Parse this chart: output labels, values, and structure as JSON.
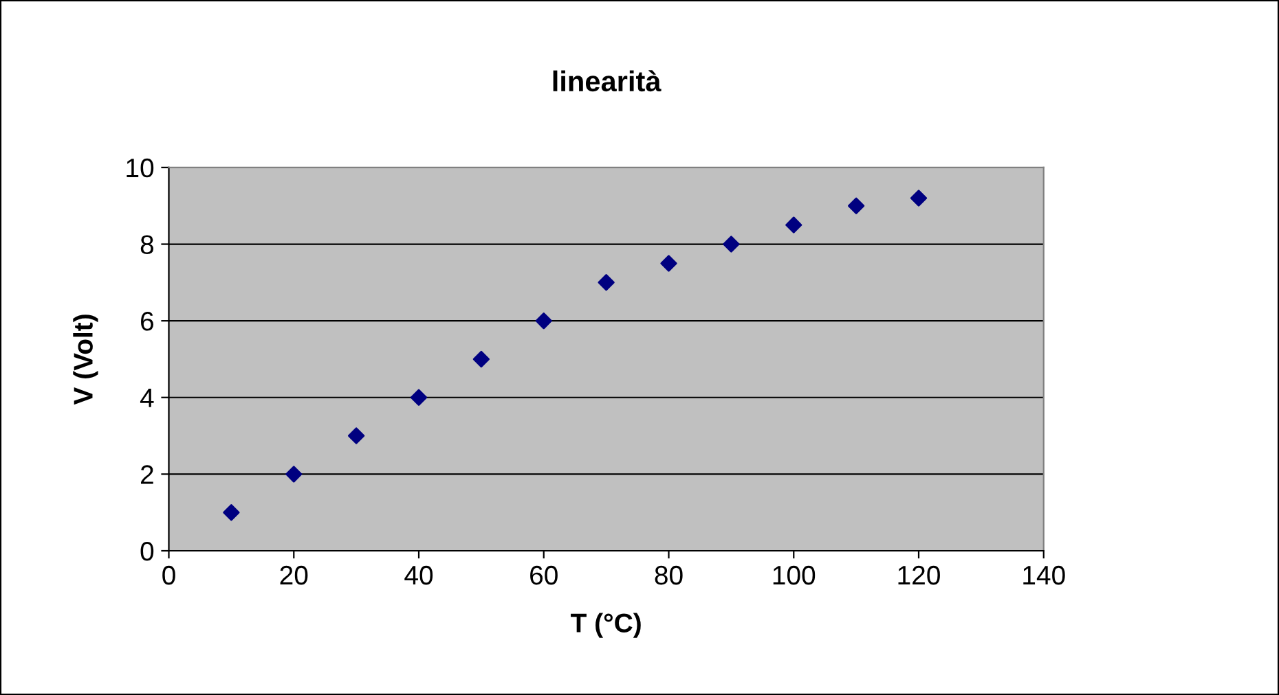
{
  "chart_data": {
    "type": "scatter",
    "title": "linearità",
    "xlabel": "T (°C)",
    "ylabel": "V (Volt)",
    "x": [
      10,
      20,
      30,
      40,
      50,
      60,
      70,
      80,
      90,
      100,
      110,
      120
    ],
    "series": [
      {
        "color": "#000080",
        "values": [
          1,
          2,
          3,
          4,
          5,
          6,
          7,
          7.5,
          8,
          8.5,
          9,
          9.2
        ]
      }
    ],
    "xlim": [
      0,
      140
    ],
    "xticks": [
      0,
      20,
      40,
      60,
      80,
      100,
      120,
      140
    ],
    "ylim": [
      0,
      10
    ],
    "yticks": [
      0,
      2,
      4,
      6,
      8,
      10
    ],
    "grid": "y",
    "marker": "diamond",
    "legend": false
  }
}
